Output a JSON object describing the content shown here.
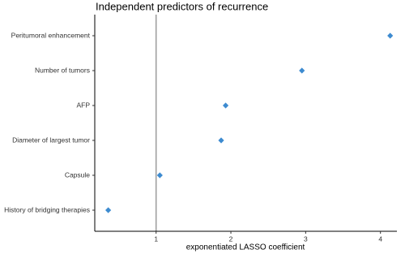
{
  "chart_data": {
    "type": "dot",
    "title": "Independent predictors of recurrence",
    "x_label": "exponentiated LASSO coefficient",
    "categories": [
      "Peritumoral enhancement",
      "Number of tumors",
      "AFP",
      "Diameter of largest tumor",
      "Capsule",
      "History of bridging therapies"
    ],
    "values": [
      4.13,
      2.95,
      1.93,
      1.87,
      1.05,
      0.36
    ],
    "color": "#3d8bd0",
    "xlim": [
      0.18,
      4.22
    ],
    "xticks": [
      1,
      2,
      3,
      4
    ],
    "reference_line": 1,
    "reference_color": "#a0a0a0"
  }
}
